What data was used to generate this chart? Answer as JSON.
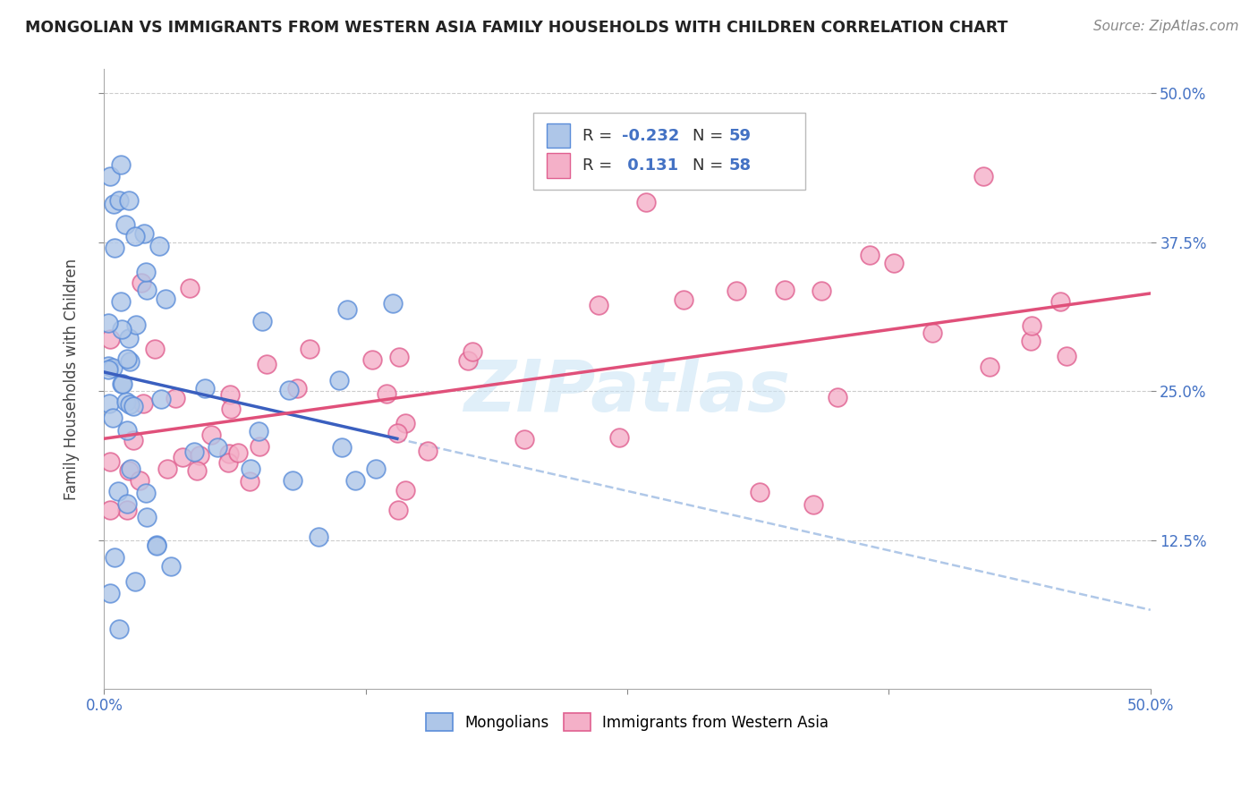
{
  "title": "MONGOLIAN VS IMMIGRANTS FROM WESTERN ASIA FAMILY HOUSEHOLDS WITH CHILDREN CORRELATION CHART",
  "source": "Source: ZipAtlas.com",
  "ylabel": "Family Households with Children",
  "xlim": [
    0.0,
    0.5
  ],
  "ylim": [
    0.0,
    0.52
  ],
  "mongolian_color": "#aec6e8",
  "mongolian_edge_color": "#5b8dd9",
  "western_asia_color": "#f4b0c8",
  "western_asia_edge_color": "#e06090",
  "mongolian_line_color": "#3a5fbf",
  "western_asia_line_color": "#e0507a",
  "dash_color": "#b0c8e8",
  "watermark_color": "#cce5f5",
  "grid_color": "#cccccc",
  "background_color": "#ffffff",
  "title_color": "#222222",
  "source_color": "#888888",
  "tick_color": "#4472c4",
  "ylabel_color": "#444444",
  "legend_R_color": "#4472c4",
  "legend_box_edge": "#bbbbbb",
  "legend_mongolian_R": "-0.232",
  "legend_mongolian_N": "59",
  "legend_western_asia_R": "0.131",
  "legend_western_asia_N": "58"
}
